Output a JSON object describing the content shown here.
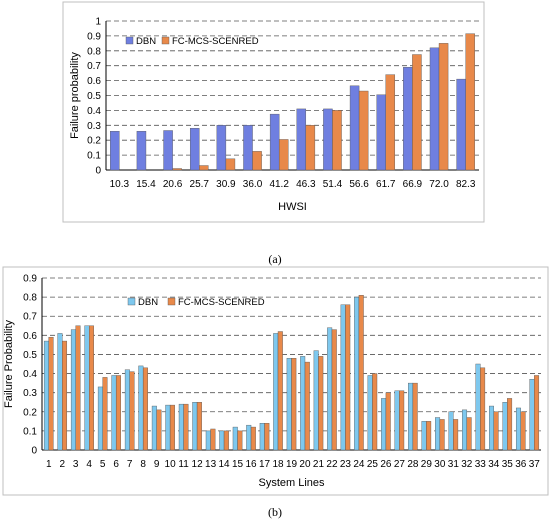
{
  "chart_data": [
    {
      "type": "bar",
      "caption": "(a)",
      "xlabel": "HWSI",
      "ylabel": "Failure probability",
      "ylim": [
        0,
        1
      ],
      "yticks": [
        "0",
        "0.1",
        "0.2",
        "0.3",
        "0.4",
        "0.5",
        "0.6",
        "0.7",
        "0.8",
        "0.9",
        "1"
      ],
      "grid": "horizontal dashed",
      "legend": "top-left",
      "categories": [
        "10.3",
        "15.4",
        "20.6",
        "25.7",
        "30.9",
        "36.0",
        "41.2",
        "46.3",
        "51.4",
        "56.6",
        "61.7",
        "66.9",
        "72.0",
        "82.3"
      ],
      "series": [
        {
          "name": "DBN",
          "color": "#6f7fe0",
          "values": [
            0.26,
            0.26,
            0.265,
            0.28,
            0.3,
            0.3,
            0.375,
            0.41,
            0.41,
            0.565,
            0.505,
            0.69,
            0.82,
            0.61
          ]
        },
        {
          "name": "FC-MCS-SCENRED",
          "color": "#e8894a",
          "values": [
            0.0,
            0.0,
            0.01,
            0.03,
            0.075,
            0.125,
            0.205,
            0.3,
            0.4,
            0.53,
            0.64,
            0.775,
            0.85,
            0.915
          ]
        }
      ]
    },
    {
      "type": "bar",
      "caption": "(b)",
      "xlabel": "System Lines",
      "ylabel": "Failure Probability",
      "ylim": [
        0,
        0.9
      ],
      "yticks": [
        "0",
        "0.1",
        "0.2",
        "0.3",
        "0.4",
        "0.5",
        "0.6",
        "0.7",
        "0.8",
        "0.9"
      ],
      "grid": "horizontal dashed",
      "legend": "top-center",
      "categories": [
        "1",
        "2",
        "3",
        "4",
        "5",
        "6",
        "7",
        "8",
        "9",
        "10",
        "11",
        "12",
        "13",
        "14",
        "15",
        "16",
        "17",
        "18",
        "19",
        "20",
        "21",
        "22",
        "23",
        "24",
        "25",
        "26",
        "27",
        "28",
        "29",
        "30",
        "31",
        "32",
        "33",
        "34",
        "35",
        "36",
        "37"
      ],
      "series": [
        {
          "name": "DBN",
          "color": "#7ec8ee",
          "values": [
            0.57,
            0.61,
            0.63,
            0.65,
            0.33,
            0.39,
            0.42,
            0.44,
            0.23,
            0.235,
            0.24,
            0.25,
            0.1,
            0.1,
            0.12,
            0.13,
            0.14,
            0.61,
            0.48,
            0.49,
            0.52,
            0.64,
            0.76,
            0.8,
            0.39,
            0.27,
            0.31,
            0.35,
            0.15,
            0.17,
            0.2,
            0.21,
            0.45,
            0.23,
            0.25,
            0.22,
            0.37
          ]
        },
        {
          "name": "FC-MCS-SCENRED",
          "color": "#e8894a",
          "values": [
            0.59,
            0.57,
            0.65,
            0.65,
            0.38,
            0.39,
            0.41,
            0.43,
            0.21,
            0.235,
            0.24,
            0.25,
            0.11,
            0.1,
            0.1,
            0.12,
            0.14,
            0.62,
            0.48,
            0.46,
            0.49,
            0.63,
            0.76,
            0.81,
            0.4,
            0.3,
            0.31,
            0.35,
            0.15,
            0.16,
            0.16,
            0.17,
            0.43,
            0.2,
            0.27,
            0.2,
            0.39
          ]
        }
      ]
    }
  ]
}
